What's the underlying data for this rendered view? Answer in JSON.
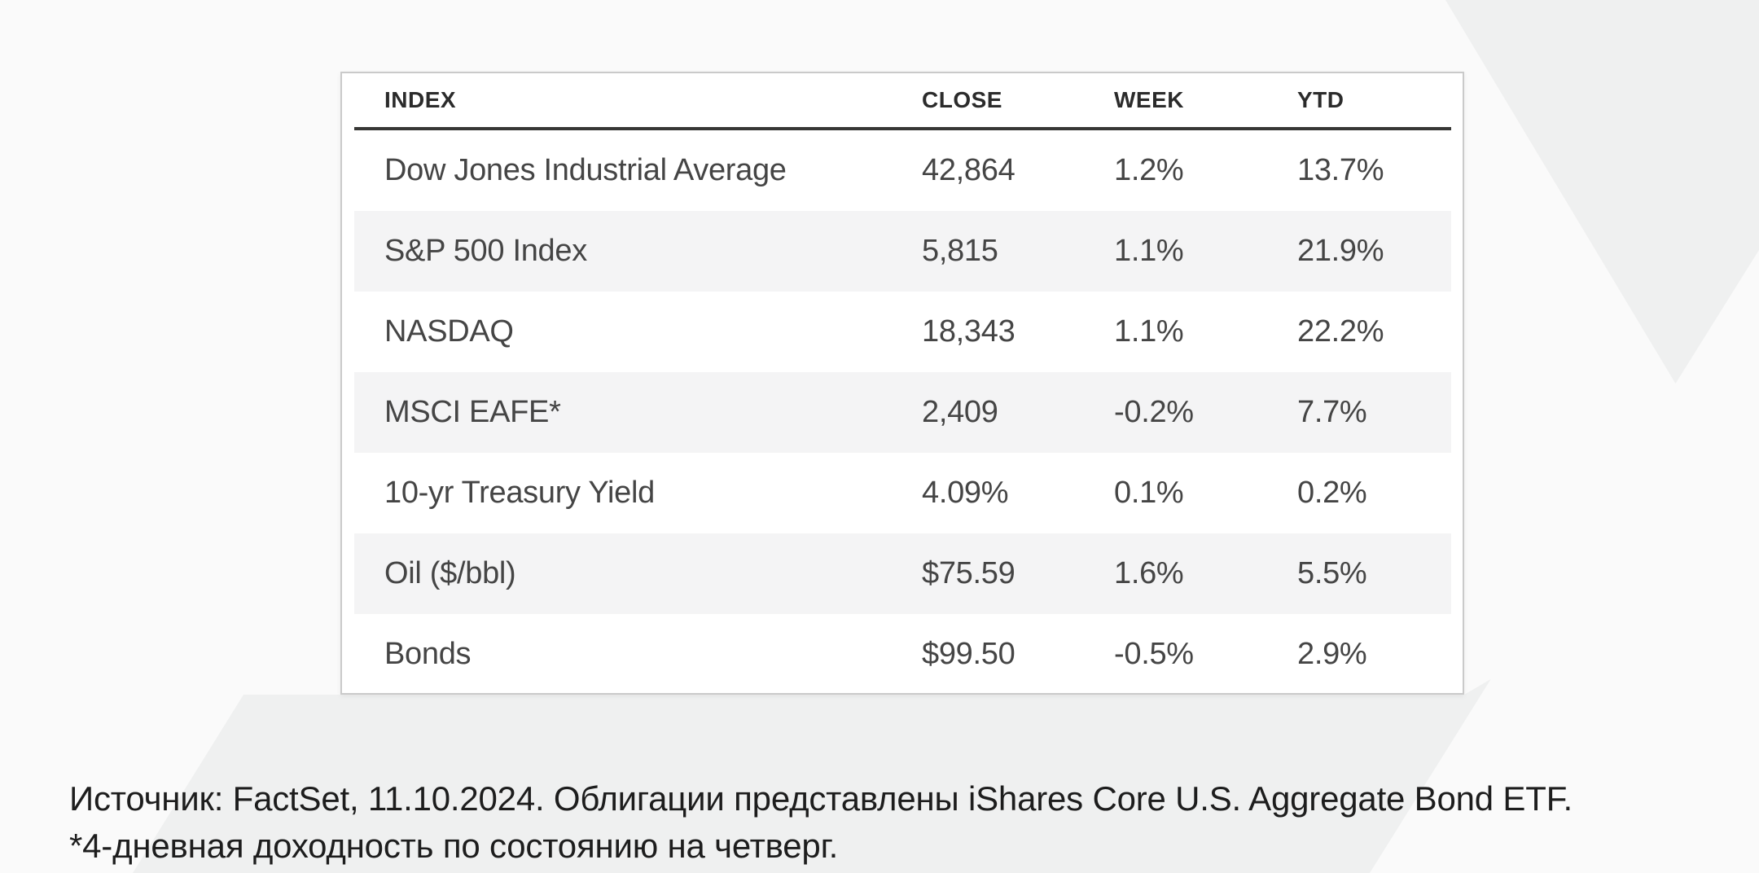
{
  "table": {
    "columns": [
      "INDEX",
      "CLOSE",
      "WEEK",
      "YTD"
    ],
    "rows": [
      {
        "index": "Dow Jones Industrial Average",
        "close": "42,864",
        "week": "1.2%",
        "ytd": "13.7%"
      },
      {
        "index": "S&P 500 Index",
        "close": "5,815",
        "week": "1.1%",
        "ytd": "21.9%"
      },
      {
        "index": "NASDAQ",
        "close": "18,343",
        "week": "1.1%",
        "ytd": "22.2%"
      },
      {
        "index": "MSCI EAFE*",
        "close": "2,409",
        "week": "-0.2%",
        "ytd": "7.7%"
      },
      {
        "index": "10-yr Treasury Yield",
        "close": "4.09%",
        "week": "0.1%",
        "ytd": "0.2%"
      },
      {
        "index": "Oil ($/bbl)",
        "close": "$75.59",
        "week": "1.6%",
        "ytd": "5.5%"
      },
      {
        "index": "Bonds",
        "close": "$99.50",
        "week": "-0.5%",
        "ytd": "2.9%"
      }
    ]
  },
  "footer": {
    "line1": "Источник: FactSet, 11.10.2024. Облигации представлены iShares Core U.S. Aggregate Bond ETF.",
    "line2": "*4-дневная доходность по состоянию на четверг."
  },
  "colors": {
    "page_background": "#eff0f0",
    "diagonal_band": "#fafafa",
    "card_background": "#ffffff",
    "card_border": "#cacaca",
    "header_divider": "#373735",
    "stripe": "#f4f4f5",
    "header_text": "#2b2b2b",
    "cell_text": "#454545",
    "footer_text": "#1d1d1d"
  },
  "chart_data": {
    "type": "table",
    "title": "",
    "columns": [
      "INDEX",
      "CLOSE",
      "WEEK",
      "YTD"
    ],
    "rows": [
      [
        "Dow Jones Industrial Average",
        "42,864",
        "1.2%",
        "13.7%"
      ],
      [
        "S&P 500 Index",
        "5,815",
        "1.1%",
        "21.9%"
      ],
      [
        "NASDAQ",
        "18,343",
        "1.1%",
        "22.2%"
      ],
      [
        "MSCI EAFE*",
        "2,409",
        "-0.2%",
        "7.7%"
      ],
      [
        "10-yr Treasury Yield",
        "4.09%",
        "0.1%",
        "0.2%"
      ],
      [
        "Oil ($/bbl)",
        "$75.59",
        "1.6%",
        "5.5%"
      ],
      [
        "Bonds",
        "$99.50",
        "-0.5%",
        "2.9%"
      ]
    ],
    "zebra_striped_rows": [
      2,
      4,
      6
    ],
    "annotations": [
      "Источник: FactSet, 11.10.2024. Облигации представлены iShares Core U.S. Aggregate Bond ETF.",
      "*4-дневная доходность по состоянию на четверг."
    ]
  }
}
